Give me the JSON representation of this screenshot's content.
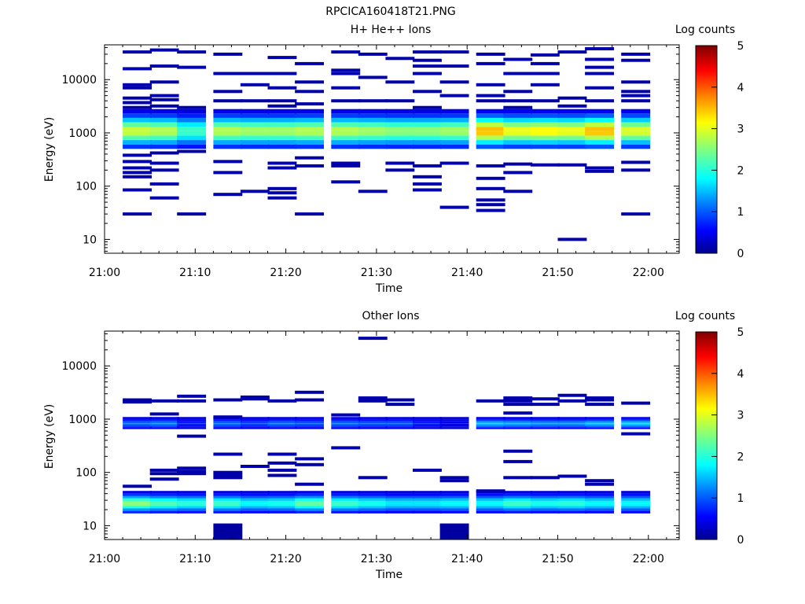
{
  "page_title": "RPCICA160418T21.PNG",
  "colors": {
    "colormap": [
      "#00008f",
      "#0000ff",
      "#0080ff",
      "#00ffff",
      "#80ff80",
      "#ffff00",
      "#ff8000",
      "#ff0000",
      "#800000"
    ],
    "axis": "#000000",
    "background": "#ffffff"
  },
  "chart_data": [
    {
      "type": "heatmap",
      "title": "H+ He++ Ions",
      "xlabel": "Time",
      "ylabel": "Energy (eV)",
      "yscale": "log",
      "xlim": [
        "21:00",
        "22:03"
      ],
      "ylim": [
        5.5,
        45000
      ],
      "x_ticks": [
        "21:00",
        "21:10",
        "21:20",
        "21:30",
        "21:40",
        "21:50",
        "22:00"
      ],
      "y_ticks": [
        10,
        100,
        1000,
        10000
      ],
      "y_tick_labels": [
        "10",
        "100",
        "1000",
        "10000"
      ],
      "colorbar": {
        "label": "Log counts",
        "min": 0,
        "max": 5,
        "ticks": [
          "0",
          "1",
          "2",
          "3",
          "4",
          "5"
        ]
      },
      "time_bins": [
        "21:02",
        "21:05",
        "21:08",
        "21:12",
        "21:15",
        "21:18",
        "21:21",
        "21:25",
        "21:28",
        "21:31",
        "21:34",
        "21:37",
        "21:41",
        "21:44",
        "21:47",
        "21:50",
        "21:53",
        "21:57"
      ],
      "bin_width_min": 3.2,
      "core_band": {
        "e_min": 500,
        "e_max": 2800,
        "peak_log_counts": [
          2.9,
          2.8,
          2.2,
          2.8,
          2.7,
          2.7,
          2.8,
          2.8,
          2.7,
          2.6,
          2.6,
          2.7,
          3.5,
          3.1,
          3.2,
          3.1,
          3.5,
          3.0
        ]
      },
      "sparse_levels": [
        {
          "time": "21:02",
          "energies": [
            33000,
            16000,
            8000,
            7000,
            4500,
            3700,
            3000,
            380,
            290,
            220,
            180,
            150,
            85,
            30
          ]
        },
        {
          "time": "21:05",
          "energies": [
            36000,
            18000,
            9000,
            5000,
            4200,
            3200,
            420,
            270,
            200,
            110,
            60
          ]
        },
        {
          "time": "21:08",
          "energies": [
            33000,
            17000,
            3000,
            450,
            30
          ]
        },
        {
          "time": "21:12",
          "energies": [
            30000,
            13000,
            6000,
            4000,
            290,
            180,
            70
          ]
        },
        {
          "time": "21:15",
          "energies": [
            13000,
            8000,
            4000,
            80
          ]
        },
        {
          "time": "21:18",
          "energies": [
            26000,
            13000,
            7000,
            4000,
            3200,
            270,
            220,
            90,
            75,
            60
          ]
        },
        {
          "time": "21:21",
          "energies": [
            20000,
            9000,
            6000,
            3500,
            340,
            240,
            30
          ]
        },
        {
          "time": "21:25",
          "energies": [
            33000,
            15000,
            13000,
            7000,
            4000,
            270,
            240,
            120
          ]
        },
        {
          "time": "21:28",
          "energies": [
            30000,
            11000,
            4000,
            80
          ]
        },
        {
          "time": "21:31",
          "energies": [
            25000,
            9000,
            4000,
            270,
            200
          ]
        },
        {
          "time": "21:34",
          "energies": [
            33000,
            23000,
            18000,
            13000,
            6000,
            3000,
            240,
            150,
            110,
            85
          ]
        },
        {
          "time": "21:37",
          "energies": [
            33000,
            18000,
            9000,
            5000,
            270,
            40
          ]
        },
        {
          "time": "21:41",
          "energies": [
            30000,
            20000,
            8000,
            5000,
            4000,
            240,
            140,
            90,
            55,
            45,
            35
          ]
        },
        {
          "time": "21:44",
          "energies": [
            24000,
            13000,
            6000,
            4000,
            3000,
            260,
            180,
            80
          ]
        },
        {
          "time": "21:47",
          "energies": [
            29000,
            20000,
            13000,
            8000,
            4000,
            250
          ]
        },
        {
          "time": "21:50",
          "energies": [
            33000,
            4500,
            3200,
            250,
            10
          ]
        },
        {
          "time": "21:53",
          "energies": [
            38000,
            24000,
            17000,
            13000,
            7000,
            4000,
            220,
            190
          ]
        },
        {
          "time": "21:57",
          "energies": [
            30000,
            23000,
            9000,
            6000,
            5000,
            4000,
            280,
            200,
            30
          ]
        }
      ]
    },
    {
      "type": "heatmap",
      "title": "Other Ions",
      "xlabel": "Time",
      "ylabel": "Energy (eV)",
      "yscale": "log",
      "xlim": [
        "21:00",
        "22:03"
      ],
      "ylim": [
        5.5,
        45000
      ],
      "x_ticks": [
        "21:00",
        "21:10",
        "21:20",
        "21:30",
        "21:40",
        "21:50",
        "22:00"
      ],
      "y_ticks": [
        10,
        100,
        1000,
        10000
      ],
      "y_tick_labels": [
        "10",
        "100",
        "1000",
        "10000"
      ],
      "colorbar": {
        "label": "Log counts",
        "min": 0,
        "max": 5,
        "ticks": [
          "0",
          "1",
          "2",
          "3",
          "4",
          "5"
        ]
      },
      "time_bins": [
        "21:02",
        "21:05",
        "21:08",
        "21:12",
        "21:15",
        "21:18",
        "21:21",
        "21:25",
        "21:28",
        "21:31",
        "21:34",
        "21:37",
        "21:41",
        "21:44",
        "21:47",
        "21:50",
        "21:53",
        "21:57"
      ],
      "bin_width_min": 3.2,
      "mid_band": {
        "e_min": 650,
        "e_max": 1100,
        "peak_log_counts": [
          1.2,
          1.3,
          0.8,
          1.2,
          1.0,
          1.2,
          1.1,
          1.2,
          1.1,
          1.1,
          0.8,
          0.6,
          1.6,
          1.5,
          1.4,
          1.4,
          1.6,
          1.7
        ]
      },
      "low_band": {
        "e_min": 17,
        "e_max": 45,
        "peak_log_counts": [
          2.6,
          2.3,
          2.1,
          2.2,
          1.9,
          2.0,
          2.4,
          2.2,
          2.0,
          1.8,
          1.8,
          1.9,
          1.9,
          2.2,
          2.0,
          2.1,
          1.9,
          1.9
        ]
      },
      "sparse_levels": [
        {
          "time": "21:02",
          "energies": [
            2300,
            2100,
            55
          ]
        },
        {
          "time": "21:05",
          "energies": [
            2200,
            1250,
            110,
            95,
            75
          ]
        },
        {
          "time": "21:08",
          "energies": [
            2700,
            2200,
            480,
            120,
            105,
            95
          ]
        },
        {
          "time": "21:12",
          "energies": [
            2300,
            1100,
            220,
            100,
            90,
            80
          ]
        },
        {
          "time": "21:15",
          "energies": [
            2600,
            2400,
            130
          ]
        },
        {
          "time": "21:18",
          "energies": [
            2200,
            220,
            150,
            110,
            88
          ]
        },
        {
          "time": "21:21",
          "energies": [
            3200,
            2300,
            180,
            140,
            60
          ]
        },
        {
          "time": "21:25",
          "energies": [
            1200,
            290
          ]
        },
        {
          "time": "21:28",
          "energies": [
            33000,
            2500,
            2200,
            80
          ]
        },
        {
          "time": "21:31",
          "energies": [
            2300,
            1900
          ]
        },
        {
          "time": "21:34",
          "energies": [
            110
          ]
        },
        {
          "time": "21:37",
          "energies": [
            10,
            80,
            70
          ]
        },
        {
          "time": "21:41",
          "energies": [
            2200,
            45
          ]
        },
        {
          "time": "21:44",
          "energies": [
            2500,
            2200,
            1900,
            1300,
            250,
            160,
            80
          ]
        },
        {
          "time": "21:47",
          "energies": [
            2400,
            1900,
            80
          ]
        },
        {
          "time": "21:50",
          "energies": [
            2800,
            2200,
            85
          ]
        },
        {
          "time": "21:53",
          "energies": [
            2500,
            2300,
            1900,
            70,
            60
          ]
        },
        {
          "time": "21:57",
          "energies": [
            2000,
            530
          ]
        }
      ],
      "blocks": [
        {
          "time": "21:12",
          "e_min": 5.5,
          "e_max": 11
        },
        {
          "time": "21:37",
          "e_min": 5.5,
          "e_max": 11
        }
      ]
    }
  ]
}
